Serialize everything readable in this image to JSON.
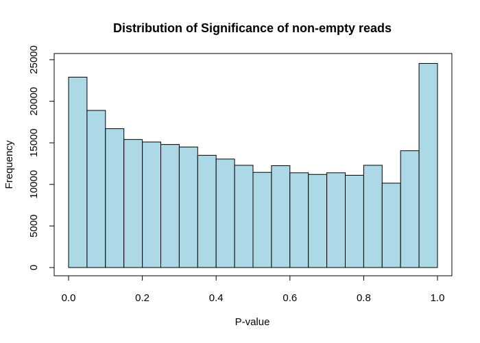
{
  "chart_data": {
    "type": "bar",
    "title": "Distribution of Significance of non-empty reads",
    "xlabel": "P-value",
    "ylabel": "Frequency",
    "xlim": [
      0,
      1
    ],
    "ylim": [
      0,
      25000
    ],
    "x_ticks": [
      "0.0",
      "0.2",
      "0.4",
      "0.6",
      "0.8",
      "1.0"
    ],
    "y_ticks": [
      "0",
      "5000",
      "10000",
      "15000",
      "20000",
      "25000"
    ],
    "bins": [
      {
        "start": 0.0,
        "end": 0.05,
        "value": 22900
      },
      {
        "start": 0.05,
        "end": 0.1,
        "value": 18900
      },
      {
        "start": 0.1,
        "end": 0.15,
        "value": 16700
      },
      {
        "start": 0.15,
        "end": 0.2,
        "value": 15400
      },
      {
        "start": 0.2,
        "end": 0.25,
        "value": 15100
      },
      {
        "start": 0.25,
        "end": 0.3,
        "value": 14800
      },
      {
        "start": 0.3,
        "end": 0.35,
        "value": 14500
      },
      {
        "start": 0.35,
        "end": 0.4,
        "value": 13500
      },
      {
        "start": 0.4,
        "end": 0.45,
        "value": 13050
      },
      {
        "start": 0.45,
        "end": 0.5,
        "value": 12300
      },
      {
        "start": 0.5,
        "end": 0.55,
        "value": 11450
      },
      {
        "start": 0.55,
        "end": 0.6,
        "value": 12250
      },
      {
        "start": 0.6,
        "end": 0.65,
        "value": 11400
      },
      {
        "start": 0.65,
        "end": 0.7,
        "value": 11200
      },
      {
        "start": 0.7,
        "end": 0.75,
        "value": 11400
      },
      {
        "start": 0.75,
        "end": 0.8,
        "value": 11100
      },
      {
        "start": 0.8,
        "end": 0.85,
        "value": 12300
      },
      {
        "start": 0.85,
        "end": 0.9,
        "value": 10150
      },
      {
        "start": 0.9,
        "end": 0.95,
        "value": 14050
      },
      {
        "start": 0.95,
        "end": 1.0,
        "value": 24550
      }
    ],
    "bar_color": "#add8e6",
    "bar_border_color": "#000000",
    "grid": false
  }
}
